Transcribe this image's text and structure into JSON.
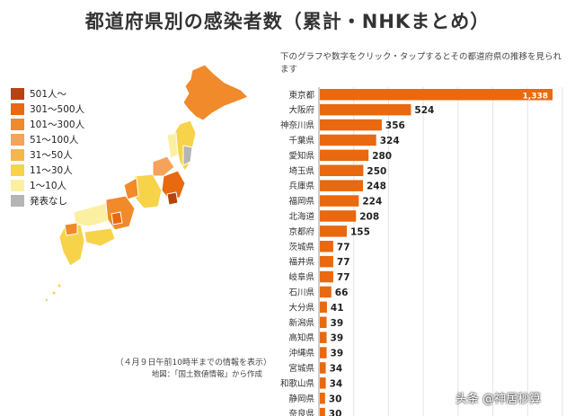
{
  "title": "都道府県別の感染者数（累計・NHKまとめ）",
  "note": "下のグラフや数字をクリック・タップするとその都道府県の推移を見られます",
  "legend": [
    {
      "label": "501人～",
      "color": "#b84210"
    },
    {
      "label": "301～500人",
      "color": "#e8690f"
    },
    {
      "label": "101～300人",
      "color": "#f08a2a"
    },
    {
      "label": "51～100人",
      "color": "#f5a25a"
    },
    {
      "label": "31～50人",
      "color": "#f7b54a"
    },
    {
      "label": "11～30人",
      "color": "#f7d34a"
    },
    {
      "label": "1～10人",
      "color": "#fbf0a2"
    },
    {
      "label": "発表なし",
      "color": "#b5b5b5"
    }
  ],
  "date_note": "（４月９日午前10時半までの情報を表示）",
  "source": "地図：「国土数値情報」から作成",
  "watermark": "头条 @神居秒算",
  "chart_data": {
    "type": "bar",
    "orientation": "horizontal",
    "bar_color": "#e8690f",
    "categories": [
      "東京都",
      "大阪府",
      "神奈川県",
      "千葉県",
      "愛知県",
      "埼玉県",
      "兵庫県",
      "福岡県",
      "北海道",
      "京都府",
      "茨城県",
      "福井県",
      "岐阜県",
      "石川県",
      "大分県",
      "新潟県",
      "高知県",
      "沖縄県",
      "宮城県",
      "和歌山県",
      "静岡県",
      "奈良県"
    ],
    "values": [
      1338,
      524,
      356,
      324,
      280,
      250,
      248,
      224,
      208,
      155,
      77,
      77,
      77,
      66,
      41,
      39,
      39,
      39,
      34,
      34,
      30,
      30
    ],
    "value_labels": [
      "1,338",
      "524",
      "356",
      "324",
      "280",
      "250",
      "248",
      "224",
      "208",
      "155",
      "77",
      "77",
      "77",
      "66",
      "41",
      "39",
      "39",
      "39",
      "34",
      "34",
      "30",
      "30"
    ],
    "xlim": [
      0,
      1400
    ]
  }
}
